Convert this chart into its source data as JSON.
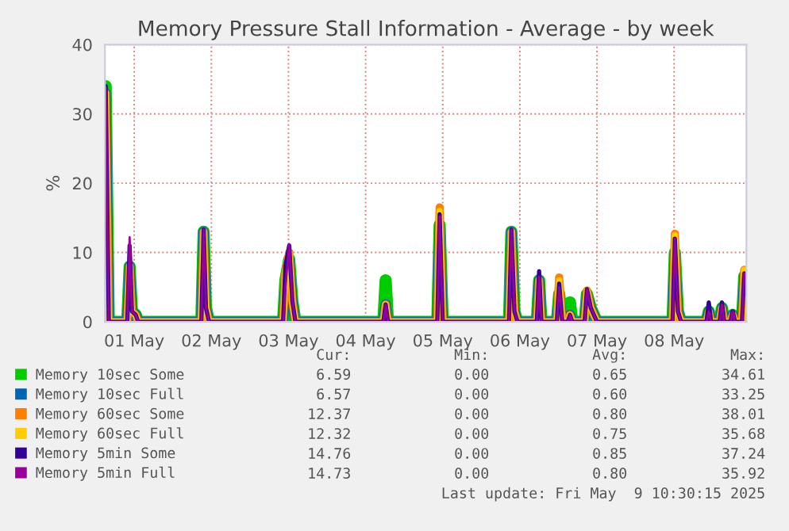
{
  "chart_data": {
    "type": "line",
    "title": "Memory Pressure Stall Information - Average - by week",
    "ylabel": "%",
    "x": [
      "2025-05-01T03:07",
      "2025-05-01T04:05",
      "2025-05-01T09:50",
      "2025-05-01T10:34",
      "2025-05-01T11:17",
      "2025-05-01T12:29",
      "2025-05-01T13:12",
      "2025-05-02T08:53",
      "2025-05-02T09:36",
      "2025-05-02T10:19",
      "2025-05-02T11:17",
      "2025-05-03T10:19",
      "2025-05-03T11:02",
      "2025-05-03T12:14",
      "2025-05-03T13:12",
      "2025-05-03T14:10",
      "2025-05-04T17:31",
      "2025-05-04T18:14",
      "2025-05-04T18:58",
      "2025-05-05T10:19",
      "2025-05-05T11:02",
      "2025-05-05T12:00",
      "2025-05-06T08:38",
      "2025-05-06T09:22",
      "2025-05-06T10:19",
      "2025-05-06T11:17",
      "2025-05-06T17:17",
      "2025-05-06T18:00",
      "2025-05-06T18:43",
      "2025-05-06T23:31",
      "2025-05-07T00:14",
      "2025-05-07T01:12",
      "2025-05-07T02:53",
      "2025-05-07T03:36",
      "2025-05-07T04:19",
      "2025-05-07T08:10",
      "2025-05-07T08:53",
      "2025-05-07T10:05",
      "2025-05-07T11:02",
      "2025-05-07T12:00",
      "2025-05-08T11:31",
      "2025-05-08T12:14",
      "2025-05-08T13:12",
      "2025-05-08T14:10",
      "2025-05-08T22:05",
      "2025-05-08T22:48",
      "2025-05-08T23:31",
      "2025-05-09T02:10",
      "2025-05-09T02:53",
      "2025-05-09T03:36",
      "2025-05-09T05:31",
      "2025-05-09T06:14",
      "2025-05-09T06:58",
      "2025-05-09T09:07",
      "2025-05-09T09:50"
    ],
    "series": [
      {
        "name": "Memory 10sec Some",
        "color": "#00cc00",
        "values": [
          34,
          0,
          0,
          8,
          1.5,
          1,
          0,
          0,
          13,
          2,
          0,
          0,
          6,
          9,
          3,
          0,
          0,
          6,
          0,
          0,
          14,
          0,
          0,
          13,
          1.5,
          0,
          0,
          6,
          0,
          0,
          4,
          0,
          0,
          2.8,
          0,
          0,
          4,
          2,
          1,
          0,
          0,
          10,
          1.5,
          0,
          0,
          1.5,
          0,
          0,
          2,
          0,
          0,
          1,
          0,
          0,
          6.6
        ]
      },
      {
        "name": "Memory 10sec Full",
        "color": "#0066b3",
        "values": [
          33,
          0,
          0,
          8,
          1.5,
          1,
          0,
          0,
          13,
          2,
          0,
          0,
          5,
          9,
          3,
          0,
          0,
          2.5,
          0,
          0,
          14,
          0,
          0,
          13,
          1.5,
          0,
          0,
          6,
          0,
          0,
          4,
          0,
          0,
          1,
          0,
          0,
          4,
          2,
          1,
          0,
          0,
          10,
          1.5,
          0,
          0,
          1.5,
          0,
          0,
          2,
          0,
          0,
          1,
          0,
          0,
          6.6
        ]
      },
      {
        "name": "Memory 60sec Some",
        "color": "#ff8000",
        "values": [
          33,
          0,
          0,
          8,
          1.5,
          1,
          0,
          0,
          13,
          2,
          0,
          0,
          7,
          10,
          3,
          0,
          0,
          2.5,
          0,
          0,
          16.5,
          0,
          0,
          13,
          1.5,
          0,
          0,
          6,
          0,
          0,
          6.4,
          0,
          0,
          1,
          0,
          0,
          4.5,
          2,
          1,
          0,
          0,
          12.7,
          1.5,
          0,
          0,
          1.5,
          0,
          0,
          2,
          0,
          0,
          1,
          0,
          0,
          7.5
        ]
      },
      {
        "name": "Memory 60sec Full",
        "color": "#ffcc00",
        "values": [
          33,
          0,
          0,
          8,
          1.5,
          1,
          0,
          0,
          13,
          2,
          0,
          0,
          7,
          10,
          3,
          0,
          0,
          2.5,
          0,
          0,
          16,
          0,
          0,
          13,
          1.5,
          0,
          0,
          6,
          0,
          0,
          6,
          0,
          0,
          1,
          0,
          0,
          4.5,
          2,
          1,
          0,
          0,
          12.5,
          1.5,
          0,
          0,
          1.5,
          0,
          0,
          2,
          0,
          0,
          1,
          0,
          0,
          7.5
        ]
      },
      {
        "name": "Memory 5min Some",
        "color": "#330099",
        "values": [
          34,
          0,
          0,
          11,
          1.5,
          1,
          0,
          0,
          13.3,
          2,
          0,
          0,
          8,
          11,
          3,
          0,
          0,
          2.5,
          0,
          0,
          15.5,
          0,
          0,
          13.3,
          1.5,
          0,
          0,
          7.3,
          0,
          0,
          5.5,
          0,
          0,
          1,
          0,
          0,
          4.7,
          2,
          1,
          0,
          0,
          12,
          1.5,
          0,
          0,
          2.8,
          0,
          0,
          2.8,
          0,
          0,
          1.5,
          0,
          0,
          7
        ]
      },
      {
        "name": "Memory 5min Full",
        "color": "#990099",
        "values": [
          33.8,
          0,
          0,
          12.2,
          1.5,
          1,
          0,
          0,
          13.3,
          2,
          0,
          0,
          5,
          11.2,
          3,
          0,
          0,
          2.5,
          0,
          0,
          15.2,
          0,
          0,
          13.3,
          1.5,
          0,
          0,
          6.5,
          0,
          0,
          5,
          0,
          0,
          1,
          0,
          0,
          4.7,
          2,
          1,
          0,
          0,
          12,
          1.5,
          0,
          0,
          1.5,
          0,
          0,
          2.5,
          0,
          0,
          1.5,
          0,
          0,
          7
        ]
      }
    ],
    "xlim": [
      "2025-05-01T02:53",
      "2025-05-09T10:30"
    ],
    "xticks": [
      {
        "value": "2025-05-01T12:00",
        "label": "01 May"
      },
      {
        "value": "2025-05-02T12:00",
        "label": "02 May"
      },
      {
        "value": "2025-05-03T12:00",
        "label": "03 May"
      },
      {
        "value": "2025-05-04T12:00",
        "label": "04 May"
      },
      {
        "value": "2025-05-05T12:00",
        "label": "05 May"
      },
      {
        "value": "2025-05-06T12:00",
        "label": "06 May"
      },
      {
        "value": "2025-05-07T12:00",
        "label": "07 May"
      },
      {
        "value": "2025-05-08T12:00",
        "label": "08 May"
      }
    ],
    "ylim": [
      0,
      40
    ],
    "yticks": [
      0,
      10,
      20,
      30,
      40
    ],
    "grid": true,
    "legend": "bottom",
    "marker": "none",
    "line_style": "solid",
    "annotations": [
      "Cur:",
      "Min:",
      "Avg:",
      "Max:",
      "6.59",
      "0.00",
      "0.65",
      "34.61",
      "6.57",
      "0.00",
      "0.60",
      "33.25",
      "12.37",
      "0.00",
      "0.80",
      "38.01",
      "12.32",
      "0.00",
      "0.75",
      "35.68",
      "14.76",
      "0.00",
      "0.85",
      "37.24",
      "14.73",
      "0.00",
      "0.80",
      "35.92",
      "Last update: Fri May  9 10:30:15 2025"
    ]
  }
}
